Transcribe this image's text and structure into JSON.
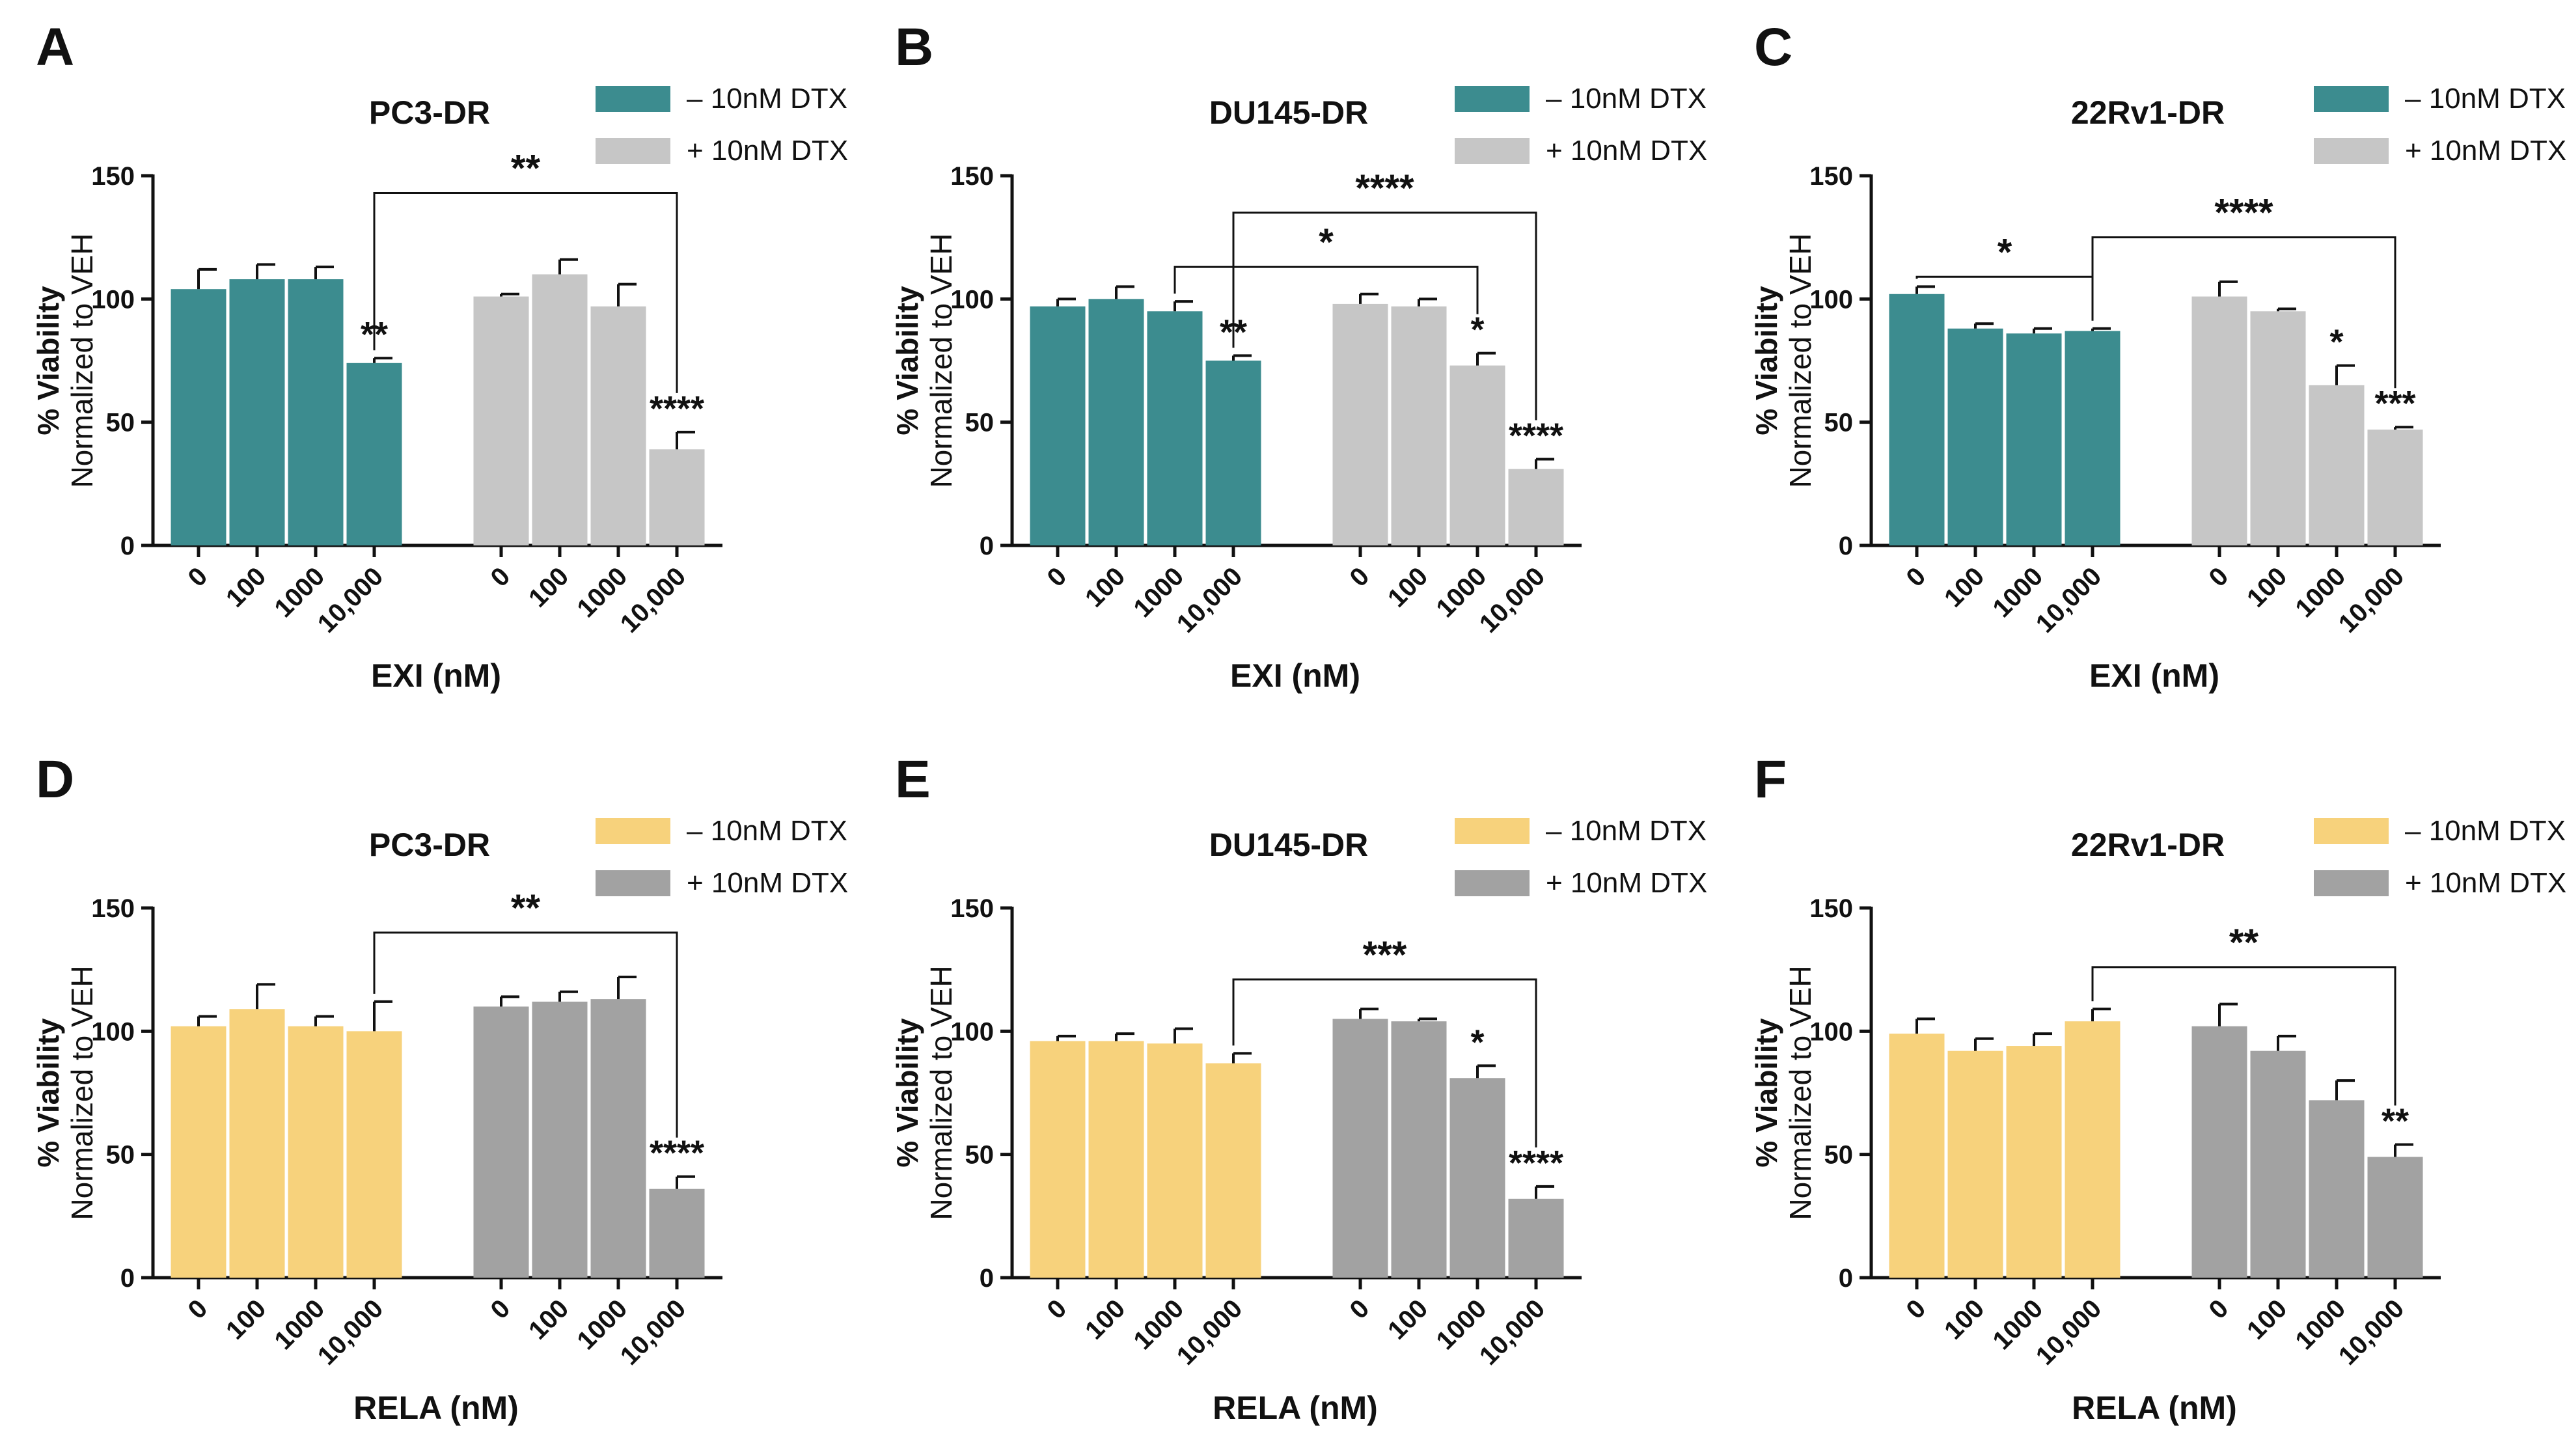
{
  "colors": {
    "teal": "#3c8c8f",
    "light_gray": "#c6c6c6",
    "yellow": "#f7d27c",
    "dark_gray": "#a2a2a2",
    "axis": "#111111"
  },
  "chart_data": [
    {
      "letter": "A",
      "type": "bar",
      "title": "PC3-DR",
      "xlabel": "EXI (nM)",
      "ylabel_line1": "% Viability",
      "ylabel_line2": "Normalized to VEH",
      "ylim": [
        0,
        150
      ],
      "yticks": [
        "0",
        "50",
        "100",
        "150"
      ],
      "categories": [
        "0",
        "100",
        "1000",
        "10,000"
      ],
      "series": [
        {
          "name": "– 10nM DTX",
          "color": "#3c8c8f",
          "values": [
            104,
            108,
            108,
            74
          ],
          "errors": [
            8,
            6,
            5,
            2
          ],
          "stars": [
            "",
            "",
            "",
            "**"
          ]
        },
        {
          "name": "+ 10nM DTX",
          "color": "#c6c6c6",
          "values": [
            101,
            110,
            97,
            39
          ],
          "errors": [
            1,
            6,
            9,
            7
          ],
          "stars": [
            "",
            "",
            "",
            "****"
          ]
        }
      ],
      "brackets": [
        {
          "label": "**",
          "from": [
            0,
            3
          ],
          "to": [
            1,
            3
          ],
          "level": 143
        }
      ]
    },
    {
      "letter": "B",
      "type": "bar",
      "title": "DU145-DR",
      "xlabel": "EXI (nM)",
      "ylabel_line1": "% Viability",
      "ylabel_line2": "Normalized to VEH",
      "ylim": [
        0,
        150
      ],
      "yticks": [
        "0",
        "50",
        "100",
        "150"
      ],
      "categories": [
        "0",
        "100",
        "1000",
        "10,000"
      ],
      "series": [
        {
          "name": "– 10nM DTX",
          "color": "#3c8c8f",
          "values": [
            97,
            100,
            95,
            75
          ],
          "errors": [
            3,
            5,
            4,
            2
          ],
          "stars": [
            "",
            "",
            "",
            "**"
          ]
        },
        {
          "name": "+ 10nM DTX",
          "color": "#c6c6c6",
          "values": [
            98,
            97,
            73,
            31
          ],
          "errors": [
            4,
            3,
            5,
            4
          ],
          "stars": [
            "",
            "",
            "*",
            "****"
          ]
        }
      ],
      "brackets": [
        {
          "label": "*",
          "from": [
            0,
            2
          ],
          "to": [
            1,
            2
          ],
          "level": 113
        },
        {
          "label": "****",
          "from": [
            0,
            3
          ],
          "to": [
            1,
            3
          ],
          "level": 135
        }
      ]
    },
    {
      "letter": "C",
      "type": "bar",
      "title": "22Rv1-DR",
      "xlabel": "EXI (nM)",
      "ylabel_line1": "% Viability",
      "ylabel_line2": "Normalized to VEH",
      "ylim": [
        0,
        150
      ],
      "yticks": [
        "0",
        "50",
        "100",
        "150"
      ],
      "categories": [
        "0",
        "100",
        "1000",
        "10,000"
      ],
      "series": [
        {
          "name": "– 10nM DTX",
          "color": "#3c8c8f",
          "values": [
            102,
            88,
            86,
            87
          ],
          "errors": [
            3,
            2,
            2,
            1
          ],
          "stars": [
            "",
            "",
            "",
            ""
          ]
        },
        {
          "name": "+ 10nM DTX",
          "color": "#c6c6c6",
          "values": [
            101,
            95,
            65,
            47
          ],
          "errors": [
            6,
            1,
            8,
            1
          ],
          "stars": [
            "",
            "",
            "*",
            "***"
          ]
        }
      ],
      "brackets": [
        {
          "label": "*",
          "from": [
            0,
            0
          ],
          "to": [
            0,
            3
          ],
          "level": 109
        },
        {
          "label": "****",
          "from": [
            0,
            3
          ],
          "to": [
            1,
            3
          ],
          "level": 125
        }
      ]
    },
    {
      "letter": "D",
      "type": "bar",
      "title": "PC3-DR",
      "xlabel": "RELA (nM)",
      "ylabel_line1": "% Viability",
      "ylabel_line2": "Normalized to VEH",
      "ylim": [
        0,
        150
      ],
      "yticks": [
        "0",
        "50",
        "100",
        "150"
      ],
      "categories": [
        "0",
        "100",
        "1000",
        "10,000"
      ],
      "series": [
        {
          "name": "– 10nM DTX",
          "color": "#f7d27c",
          "values": [
            102,
            109,
            102,
            100
          ],
          "errors": [
            4,
            10,
            4,
            12
          ],
          "stars": [
            "",
            "",
            "",
            ""
          ]
        },
        {
          "name": "+ 10nM DTX",
          "color": "#a2a2a2",
          "values": [
            110,
            112,
            113,
            36
          ],
          "errors": [
            4,
            4,
            9,
            5
          ],
          "stars": [
            "",
            "",
            "",
            "****"
          ]
        }
      ],
      "brackets": [
        {
          "label": "**",
          "from": [
            0,
            3
          ],
          "to": [
            1,
            3
          ],
          "level": 140
        }
      ]
    },
    {
      "letter": "E",
      "type": "bar",
      "title": "DU145-DR",
      "xlabel": "RELA (nM)",
      "ylabel_line1": "% Viability",
      "ylabel_line2": "Normalized to VEH",
      "ylim": [
        0,
        150
      ],
      "yticks": [
        "0",
        "50",
        "100",
        "150"
      ],
      "categories": [
        "0",
        "100",
        "1000",
        "10,000"
      ],
      "series": [
        {
          "name": "– 10nM DTX",
          "color": "#f7d27c",
          "values": [
            96,
            96,
            95,
            87
          ],
          "errors": [
            2,
            3,
            6,
            4
          ],
          "stars": [
            "",
            "",
            "",
            ""
          ]
        },
        {
          "name": "+ 10nM DTX",
          "color": "#a2a2a2",
          "values": [
            105,
            104,
            81,
            32
          ],
          "errors": [
            4,
            1,
            5,
            5
          ],
          "stars": [
            "",
            "",
            "*",
            "****"
          ]
        }
      ],
      "brackets": [
        {
          "label": "***",
          "from": [
            0,
            3
          ],
          "to": [
            1,
            3
          ],
          "level": 121
        }
      ]
    },
    {
      "letter": "F",
      "type": "bar",
      "title": "22Rv1-DR",
      "xlabel": "RELA (nM)",
      "ylabel_line1": "% Viability",
      "ylabel_line2": "Normalized to VEH",
      "ylim": [
        0,
        150
      ],
      "yticks": [
        "0",
        "50",
        "100",
        "150"
      ],
      "categories": [
        "0",
        "100",
        "1000",
        "10,000"
      ],
      "series": [
        {
          "name": "– 10nM DTX",
          "color": "#f7d27c",
          "values": [
            99,
            92,
            94,
            104
          ],
          "errors": [
            6,
            5,
            5,
            5
          ],
          "stars": [
            "",
            "",
            "",
            ""
          ]
        },
        {
          "name": "+ 10nM DTX",
          "color": "#a2a2a2",
          "values": [
            102,
            92,
            72,
            49
          ],
          "errors": [
            9,
            6,
            8,
            5
          ],
          "stars": [
            "",
            "",
            "",
            "**"
          ]
        }
      ],
      "brackets": [
        {
          "label": "**",
          "from": [
            0,
            3
          ],
          "to": [
            1,
            3
          ],
          "level": 126
        }
      ]
    }
  ]
}
